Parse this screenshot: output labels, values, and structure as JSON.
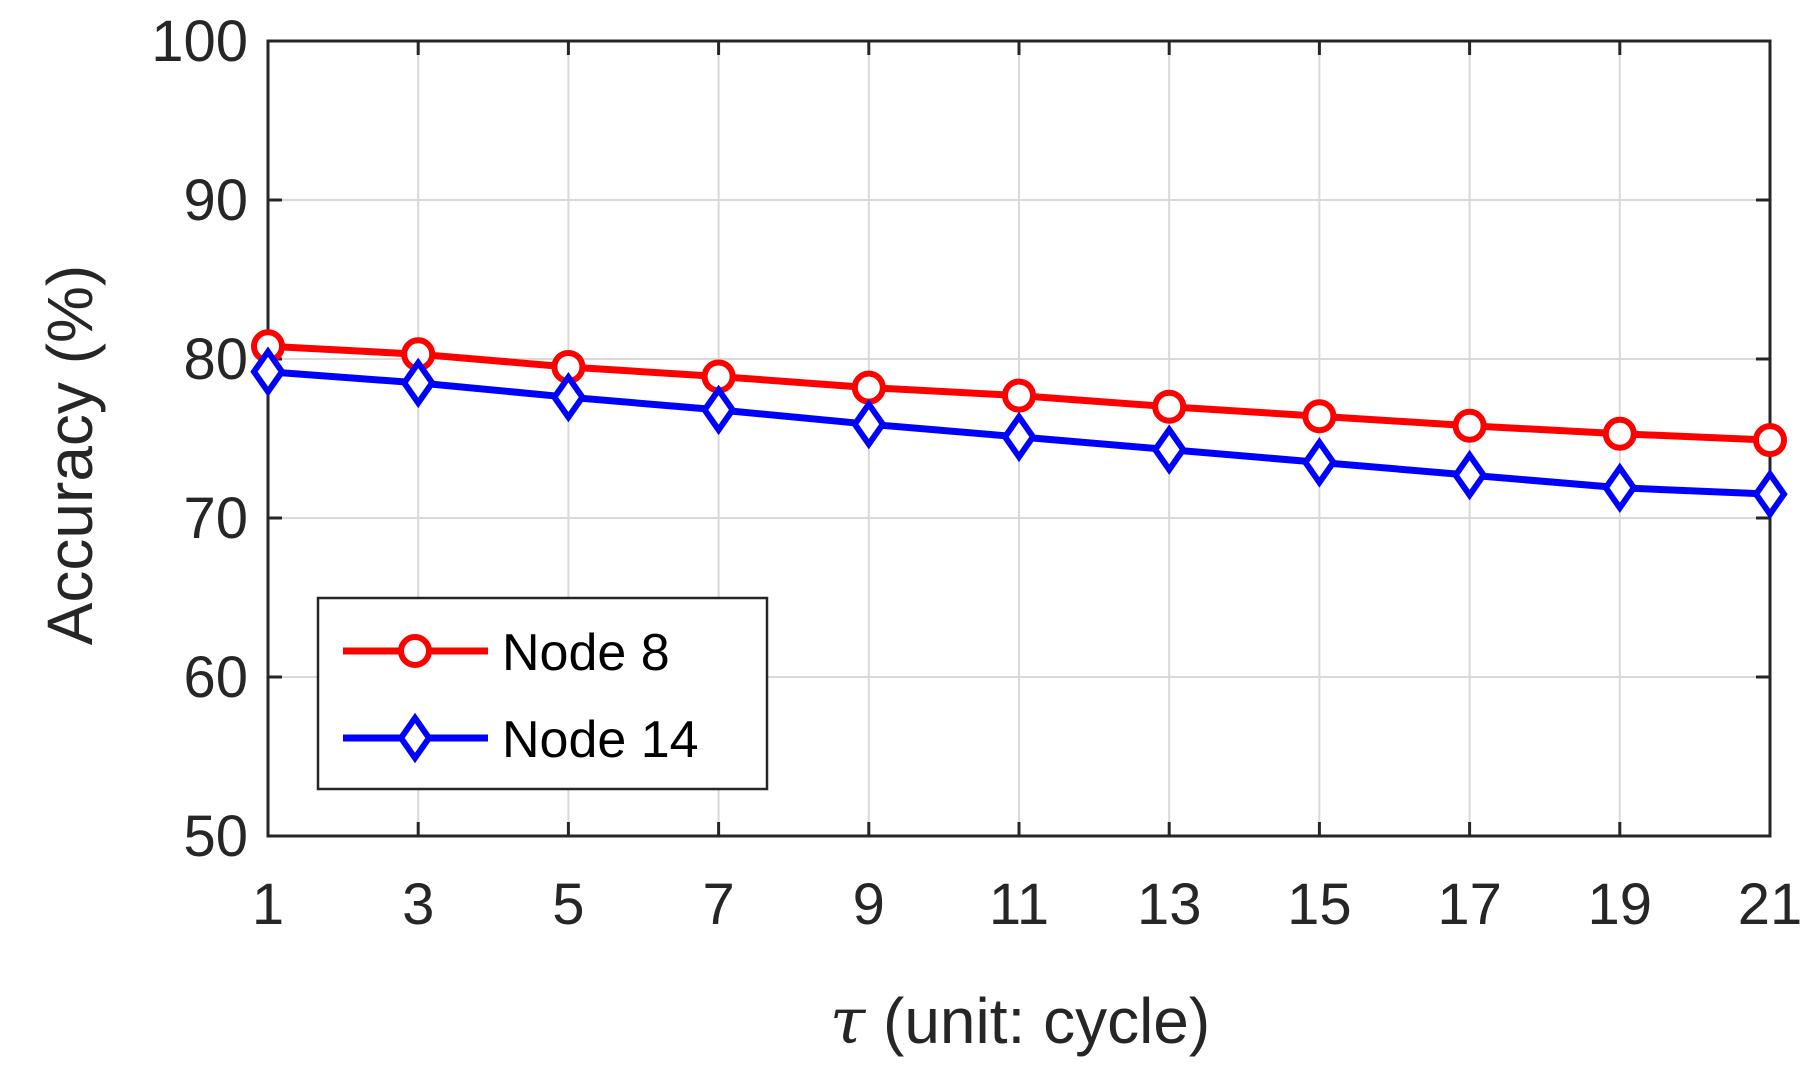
{
  "chart_data": {
    "type": "line",
    "x": [
      1,
      3,
      5,
      7,
      9,
      11,
      13,
      15,
      17,
      19,
      21
    ],
    "series": [
      {
        "name": "Node 8",
        "color": "#ff0000",
        "marker": "circle",
        "values": [
          80.8,
          80.3,
          79.5,
          78.9,
          78.2,
          77.7,
          77.0,
          76.4,
          75.8,
          75.3,
          74.9
        ]
      },
      {
        "name": "Node 14",
        "color": "#0000ff",
        "marker": "diamond",
        "values": [
          79.2,
          78.5,
          77.6,
          76.8,
          75.9,
          75.1,
          74.3,
          73.5,
          72.7,
          71.9,
          71.5
        ]
      }
    ],
    "xticks": [
      "1",
      "3",
      "5",
      "7",
      "9",
      "11",
      "13",
      "15",
      "17",
      "19",
      "21"
    ],
    "yticks": [
      "50",
      "60",
      "70",
      "80",
      "90",
      "100"
    ],
    "xlim": [
      1,
      21
    ],
    "ylim": [
      50,
      100
    ],
    "grid": true,
    "legend_position": "bottom-left",
    "title": "",
    "xlabel_symbol": "τ",
    "xlabel_text": " (unit: cycle)",
    "ylabel": "Accuracy (%)"
  }
}
